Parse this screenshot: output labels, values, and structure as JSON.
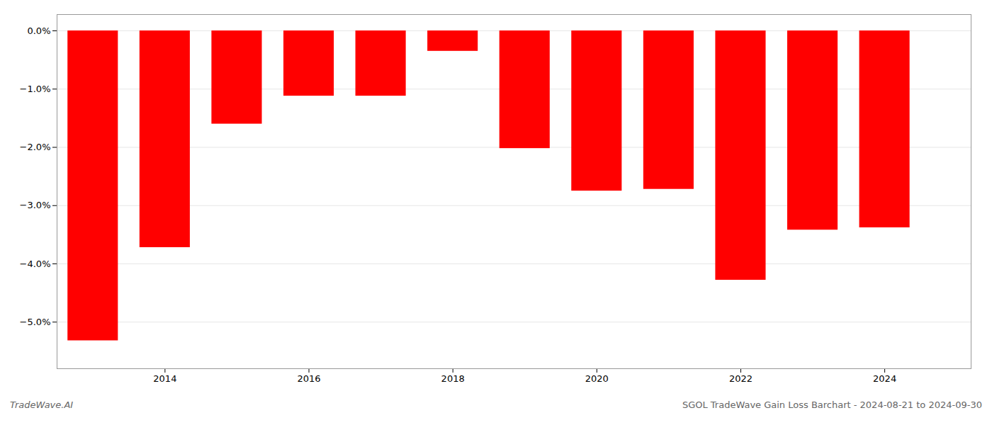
{
  "chart_data": {
    "type": "bar",
    "x": [
      2013,
      2014,
      2015,
      2016,
      2017,
      2018,
      2019,
      2020,
      2021,
      2022,
      2023,
      2024
    ],
    "values": [
      -5.32,
      -3.72,
      -1.6,
      -1.12,
      -1.12,
      -0.35,
      -2.02,
      -2.75,
      -2.72,
      -4.28,
      -3.42,
      -3.38
    ],
    "color": "#ff0000",
    "xlim": [
      2012.5,
      2025.2
    ],
    "xticks": [
      2014,
      2016,
      2018,
      2020,
      2022,
      2024
    ],
    "ylim": [
      -5.8,
      0.28
    ],
    "yticks": [
      {
        "value": 0.0,
        "label": "0.0%"
      },
      {
        "value": -1.0,
        "label": "−1.0%"
      },
      {
        "value": -2.0,
        "label": "−2.0%"
      },
      {
        "value": -3.0,
        "label": "−3.0%"
      },
      {
        "value": -4.0,
        "label": "−4.0%"
      },
      {
        "value": -5.0,
        "label": "−5.0%"
      }
    ],
    "grid": true,
    "annotations": [
      "TradeWave.AI",
      "SGOL TradeWave Gain Loss Barchart - 2024-08-21 to 2024-09-30"
    ]
  }
}
